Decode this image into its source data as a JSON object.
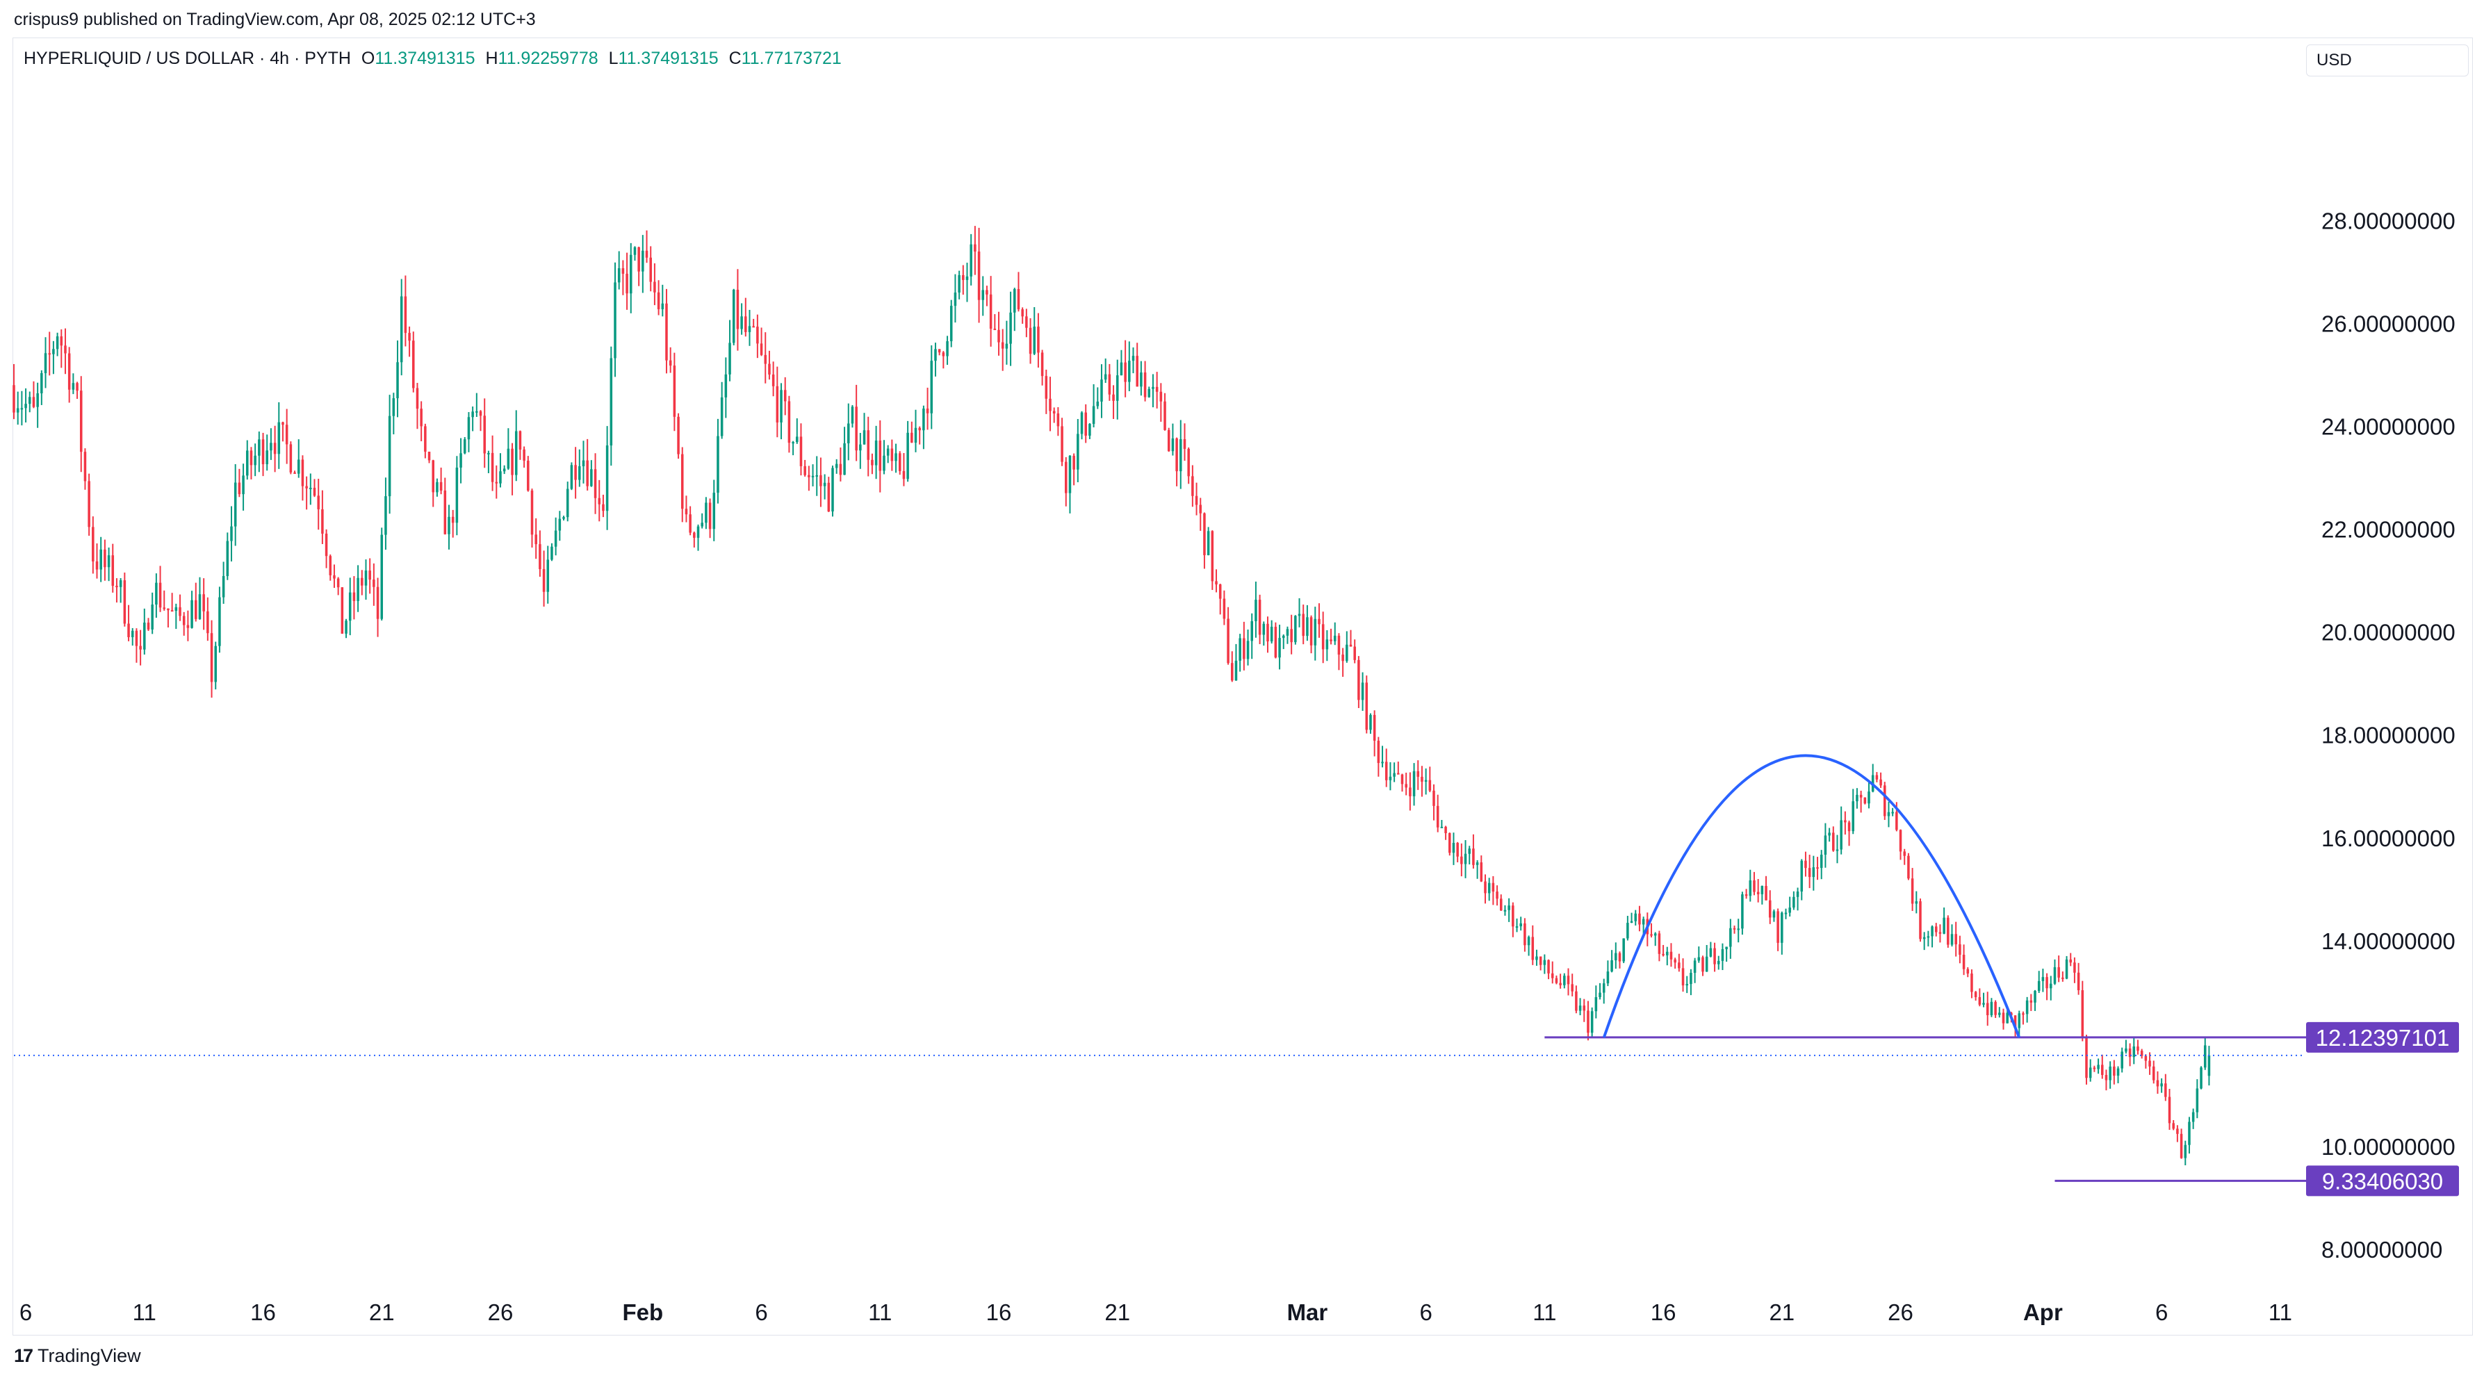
{
  "header": {
    "published": "crispus9 published on TradingView.com, Apr 08, 2025 02:12 UTC+3"
  },
  "legend": {
    "symbol": "HYPERLIQUID / US DOLLAR · 4h · PYTH",
    "open_label": "O",
    "open": "11.37491315",
    "high_label": "H",
    "high": "11.92259778",
    "low_label": "L",
    "low": "11.37491315",
    "close_label": "C",
    "close": "11.77173721"
  },
  "currency": "USD",
  "brand": {
    "name": "TradingView",
    "logo_text": "17"
  },
  "colors": {
    "up": "#089981",
    "down": "#f23645",
    "arc": "#2962ff",
    "level": "#6a3fc0",
    "label_bg": "#6a3fc0"
  },
  "chart_data": {
    "type": "candlestick",
    "interval": "4h",
    "ylim": [
      7.3,
      30.8
    ],
    "y_ticks": [
      "28.00000000",
      "26.00000000",
      "24.00000000",
      "22.00000000",
      "20.00000000",
      "18.00000000",
      "16.00000000",
      "14.00000000",
      "10.00000000",
      "8.00000000"
    ],
    "y_tick_values": [
      28,
      26,
      24,
      22,
      20,
      18,
      16,
      14,
      10,
      8
    ],
    "x_range": [
      "2025-01-05T12:00",
      "2025-04-12T00:00"
    ],
    "x_ticks": [
      {
        "label": "6",
        "date": "2025-01-06",
        "major": false
      },
      {
        "label": "11",
        "date": "2025-01-11",
        "major": false
      },
      {
        "label": "16",
        "date": "2025-01-16",
        "major": false
      },
      {
        "label": "21",
        "date": "2025-01-21",
        "major": false
      },
      {
        "label": "26",
        "date": "2025-01-26",
        "major": false
      },
      {
        "label": "Feb",
        "date": "2025-02-01",
        "major": true
      },
      {
        "label": "6",
        "date": "2025-02-06",
        "major": false
      },
      {
        "label": "11",
        "date": "2025-02-11",
        "major": false
      },
      {
        "label": "16",
        "date": "2025-02-16",
        "major": false
      },
      {
        "label": "21",
        "date": "2025-02-21",
        "major": false
      },
      {
        "label": "Mar",
        "date": "2025-03-01",
        "major": true
      },
      {
        "label": "6",
        "date": "2025-03-06",
        "major": false
      },
      {
        "label": "11",
        "date": "2025-03-11",
        "major": false
      },
      {
        "label": "16",
        "date": "2025-03-16",
        "major": false
      },
      {
        "label": "21",
        "date": "2025-03-21",
        "major": false
      },
      {
        "label": "26",
        "date": "2025-03-26",
        "major": false
      },
      {
        "label": "Apr",
        "date": "2025-04-01",
        "major": true
      },
      {
        "label": "6",
        "date": "2025-04-06",
        "major": false
      },
      {
        "label": "11",
        "date": "2025-04-11",
        "major": false
      }
    ],
    "price_path": [
      [
        "2025-01-05T12:00",
        24.8
      ],
      [
        "2025-01-06T12:00",
        24.2
      ],
      [
        "2025-01-07T12:00",
        25.9
      ],
      [
        "2025-01-08T06:00",
        24.7
      ],
      [
        "2025-01-09T00:00",
        21.5
      ],
      [
        "2025-01-10T00:00",
        21.0
      ],
      [
        "2025-01-11T00:00",
        19.4
      ],
      [
        "2025-01-11T12:00",
        20.9
      ],
      [
        "2025-01-12T12:00",
        20.2
      ],
      [
        "2025-01-13T12:00",
        20.6
      ],
      [
        "2025-01-14T00:00",
        19.2
      ],
      [
        "2025-01-15T00:00",
        22.8
      ],
      [
        "2025-01-16T12:00",
        23.9
      ],
      [
        "2025-01-17T12:00",
        23.4
      ],
      [
        "2025-01-18T12:00",
        22.6
      ],
      [
        "2025-01-19T12:00",
        20.1
      ],
      [
        "2025-01-20T12:00",
        21.2
      ],
      [
        "2025-01-21T00:00",
        20.3
      ],
      [
        "2025-01-21T12:00",
        24.0
      ],
      [
        "2025-01-22T00:00",
        26.4
      ],
      [
        "2025-01-23T00:00",
        23.2
      ],
      [
        "2025-01-24T00:00",
        22.0
      ],
      [
        "2025-01-25T00:00",
        24.5
      ],
      [
        "2025-01-26T00:00",
        22.6
      ],
      [
        "2025-01-27T00:00",
        23.8
      ],
      [
        "2025-01-28T00:00",
        20.7
      ],
      [
        "2025-01-29T00:00",
        22.9
      ],
      [
        "2025-01-29T12:00",
        23.6
      ],
      [
        "2025-01-30T12:00",
        22.5
      ],
      [
        "2025-01-31T00:00",
        26.5
      ],
      [
        "2025-02-01T00:00",
        27.3
      ],
      [
        "2025-02-02T00:00",
        26.2
      ],
      [
        "2025-02-03T00:00",
        22.0
      ],
      [
        "2025-02-04T00:00",
        22.3
      ],
      [
        "2025-02-05T00:00",
        26.2
      ],
      [
        "2025-02-06T00:00",
        25.4
      ],
      [
        "2025-02-07T00:00",
        24.3
      ],
      [
        "2025-02-08T00:00",
        23.2
      ],
      [
        "2025-02-09T00:00",
        22.7
      ],
      [
        "2025-02-10T00:00",
        24.0
      ],
      [
        "2025-02-11T00:00",
        23.5
      ],
      [
        "2025-02-12T00:00",
        23.0
      ],
      [
        "2025-02-13T00:00",
        24.4
      ],
      [
        "2025-02-14T00:00",
        26.0
      ],
      [
        "2025-02-15T00:00",
        27.2
      ],
      [
        "2025-02-16T00:00",
        25.7
      ],
      [
        "2025-02-17T00:00",
        26.4
      ],
      [
        "2025-02-18T00:00",
        25.3
      ],
      [
        "2025-02-19T00:00",
        23.1
      ],
      [
        "2025-02-20T00:00",
        24.3
      ],
      [
        "2025-02-21T00:00",
        24.8
      ],
      [
        "2025-02-22T00:00",
        25.2
      ],
      [
        "2025-02-23T00:00",
        24.2
      ],
      [
        "2025-02-24T00:00",
        23.2
      ],
      [
        "2025-02-25T00:00",
        21.6
      ],
      [
        "2025-02-26T00:00",
        19.2
      ],
      [
        "2025-02-27T00:00",
        20.4
      ],
      [
        "2025-02-28T00:00",
        19.6
      ],
      [
        "2025-03-01T00:00",
        20.2
      ],
      [
        "2025-03-02T00:00",
        19.7
      ],
      [
        "2025-03-03T00:00",
        19.6
      ],
      [
        "2025-03-04T00:00",
        17.8
      ],
      [
        "2025-03-05T00:00",
        17.0
      ],
      [
        "2025-03-06T00:00",
        17.2
      ],
      [
        "2025-03-07T00:00",
        16.0
      ],
      [
        "2025-03-08T00:00",
        15.6
      ],
      [
        "2025-03-09T00:00",
        14.8
      ],
      [
        "2025-03-10T00:00",
        14.4
      ],
      [
        "2025-03-11T00:00",
        13.5
      ],
      [
        "2025-03-12T00:00",
        13.1
      ],
      [
        "2025-03-13T00:00",
        12.4
      ],
      [
        "2025-03-14T00:00",
        13.5
      ],
      [
        "2025-03-15T00:00",
        14.5
      ],
      [
        "2025-03-16T00:00",
        13.8
      ],
      [
        "2025-03-17T00:00",
        13.2
      ],
      [
        "2025-03-18T00:00",
        13.6
      ],
      [
        "2025-03-19T00:00",
        14.1
      ],
      [
        "2025-03-20T00:00",
        15.2
      ],
      [
        "2025-03-21T00:00",
        14.2
      ],
      [
        "2025-03-22T00:00",
        15.3
      ],
      [
        "2025-03-23T00:00",
        15.8
      ],
      [
        "2025-03-24T00:00",
        16.3
      ],
      [
        "2025-03-25T00:00",
        17.1
      ],
      [
        "2025-03-26T00:00",
        16.3
      ],
      [
        "2025-03-27T00:00",
        14.2
      ],
      [
        "2025-03-28T00:00",
        14.3
      ],
      [
        "2025-03-29T00:00",
        13.2
      ],
      [
        "2025-03-30T00:00",
        12.6
      ],
      [
        "2025-03-31T00:00",
        12.4
      ],
      [
        "2025-04-01T00:00",
        13.0
      ],
      [
        "2025-04-02T00:00",
        13.5
      ],
      [
        "2025-04-02T12:00",
        13.6
      ],
      [
        "2025-04-03T00:00",
        11.5
      ],
      [
        "2025-04-04T00:00",
        11.4
      ],
      [
        "2025-04-05T00:00",
        11.9
      ],
      [
        "2025-04-06T00:00",
        11.3
      ],
      [
        "2025-04-07T00:00",
        9.9
      ],
      [
        "2025-04-07T12:00",
        10.6
      ],
      [
        "2025-04-08T00:00",
        11.77
      ]
    ],
    "annotations": [
      {
        "type": "hline",
        "value": 12.12397101,
        "label": "12.12397101",
        "from": "2025-03-11T00:00"
      },
      {
        "type": "hline",
        "value": 9.3340603,
        "label": "9.33406030",
        "from": "2025-04-01T12:00"
      },
      {
        "type": "arc",
        "from": [
          "2025-03-13T12:00",
          12.12
        ],
        "peak": [
          "2025-03-22T00:00",
          17.6
        ],
        "to": [
          "2025-03-31T00:00",
          12.12
        ]
      }
    ],
    "last_price": 11.77173721
  }
}
